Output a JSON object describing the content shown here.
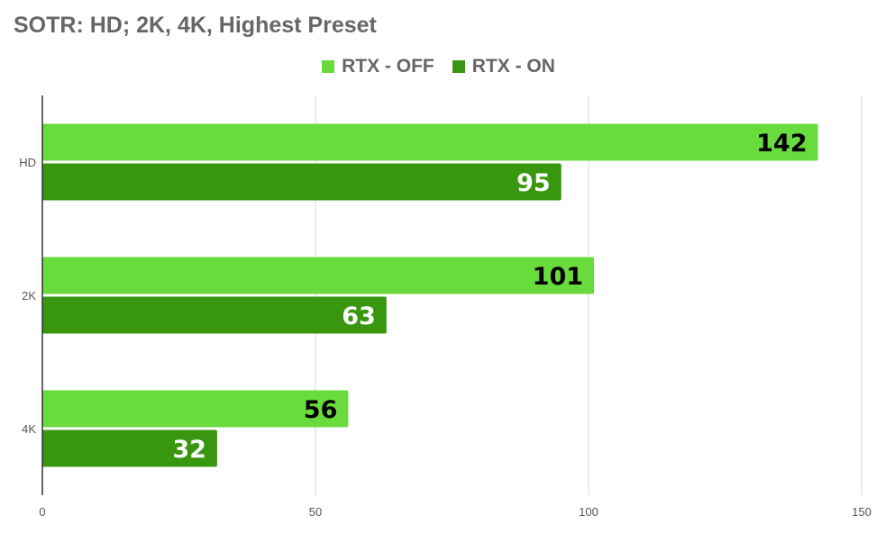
{
  "chart_data": {
    "type": "bar",
    "orientation": "horizontal",
    "title": "SOTR: HD; 2K, 4K, Highest Preset",
    "categories": [
      "HD",
      "2K",
      "4K"
    ],
    "series": [
      {
        "name": "RTX - OFF",
        "values": [
          142,
          101,
          56
        ],
        "color": "#6ADB3D",
        "label_color": "#000000"
      },
      {
        "name": "RTX - ON",
        "values": [
          95,
          63,
          32
        ],
        "color": "#38960F",
        "label_color": "#ffffff"
      }
    ],
    "xlim": [
      0,
      150
    ],
    "xticks": [
      "0",
      "50",
      "100",
      "150"
    ],
    "xlabel": "",
    "ylabel": "",
    "grid": true,
    "legend_position": "top"
  }
}
